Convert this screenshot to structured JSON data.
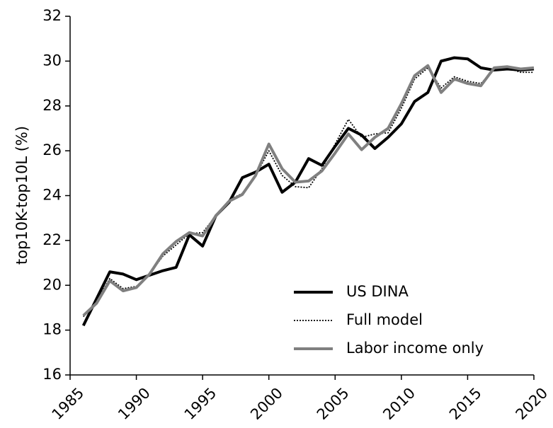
{
  "chart_data": {
    "type": "line",
    "y_label": "top10K-top10L (%)",
    "x": [
      1986,
      1987,
      1988,
      1989,
      1990,
      1991,
      1992,
      1993,
      1994,
      1995,
      1996,
      1997,
      1998,
      1999,
      2000,
      2001,
      2002,
      2003,
      2004,
      2005,
      2006,
      2007,
      2008,
      2009,
      2010,
      2011,
      2012,
      2013,
      2014,
      2015,
      2016,
      2017,
      2018,
      2019,
      2020
    ],
    "series": [
      {
        "name": "US DINA",
        "color": "#000000",
        "style": "solid",
        "values": [
          18.2,
          19.4,
          20.6,
          20.5,
          20.25,
          20.45,
          20.65,
          20.8,
          22.25,
          21.75,
          23.1,
          23.7,
          24.8,
          25.05,
          25.4,
          24.15,
          24.6,
          25.65,
          25.35,
          26.2,
          27.0,
          26.7,
          26.1,
          26.6,
          27.2,
          28.2,
          28.6,
          30.0,
          30.15,
          30.1,
          29.7,
          29.6,
          29.65,
          29.6,
          29.65
        ]
      },
      {
        "name": "Full model",
        "color": "#000000",
        "style": "dotted",
        "values": [
          18.6,
          19.3,
          20.3,
          19.85,
          19.95,
          20.5,
          21.3,
          21.8,
          22.3,
          22.35,
          23.1,
          23.8,
          24.1,
          24.9,
          26.0,
          24.9,
          24.4,
          24.35,
          25.2,
          26.3,
          27.4,
          26.6,
          26.75,
          26.8,
          27.9,
          29.2,
          29.7,
          28.8,
          29.3,
          29.1,
          29.0,
          29.6,
          29.7,
          29.5,
          29.5
        ]
      },
      {
        "name": "Labor income only",
        "color": "#808080",
        "style": "solid",
        "values": [
          18.65,
          19.2,
          20.2,
          19.75,
          19.9,
          20.5,
          21.4,
          21.95,
          22.35,
          22.2,
          23.1,
          23.75,
          24.05,
          24.9,
          26.3,
          25.2,
          24.6,
          24.65,
          25.1,
          25.9,
          26.75,
          26.05,
          26.6,
          27.0,
          28.1,
          29.35,
          29.8,
          28.6,
          29.2,
          29.0,
          28.9,
          29.7,
          29.75,
          29.65,
          29.7
        ]
      }
    ],
    "xlim": [
      1985,
      2020
    ],
    "xticks": [
      1985,
      1990,
      1995,
      2000,
      2005,
      2010,
      2015,
      2020
    ],
    "ylim": [
      16,
      32
    ],
    "yticks": [
      16,
      18,
      20,
      22,
      24,
      26,
      28,
      30,
      32
    ],
    "legend": "lower right"
  }
}
